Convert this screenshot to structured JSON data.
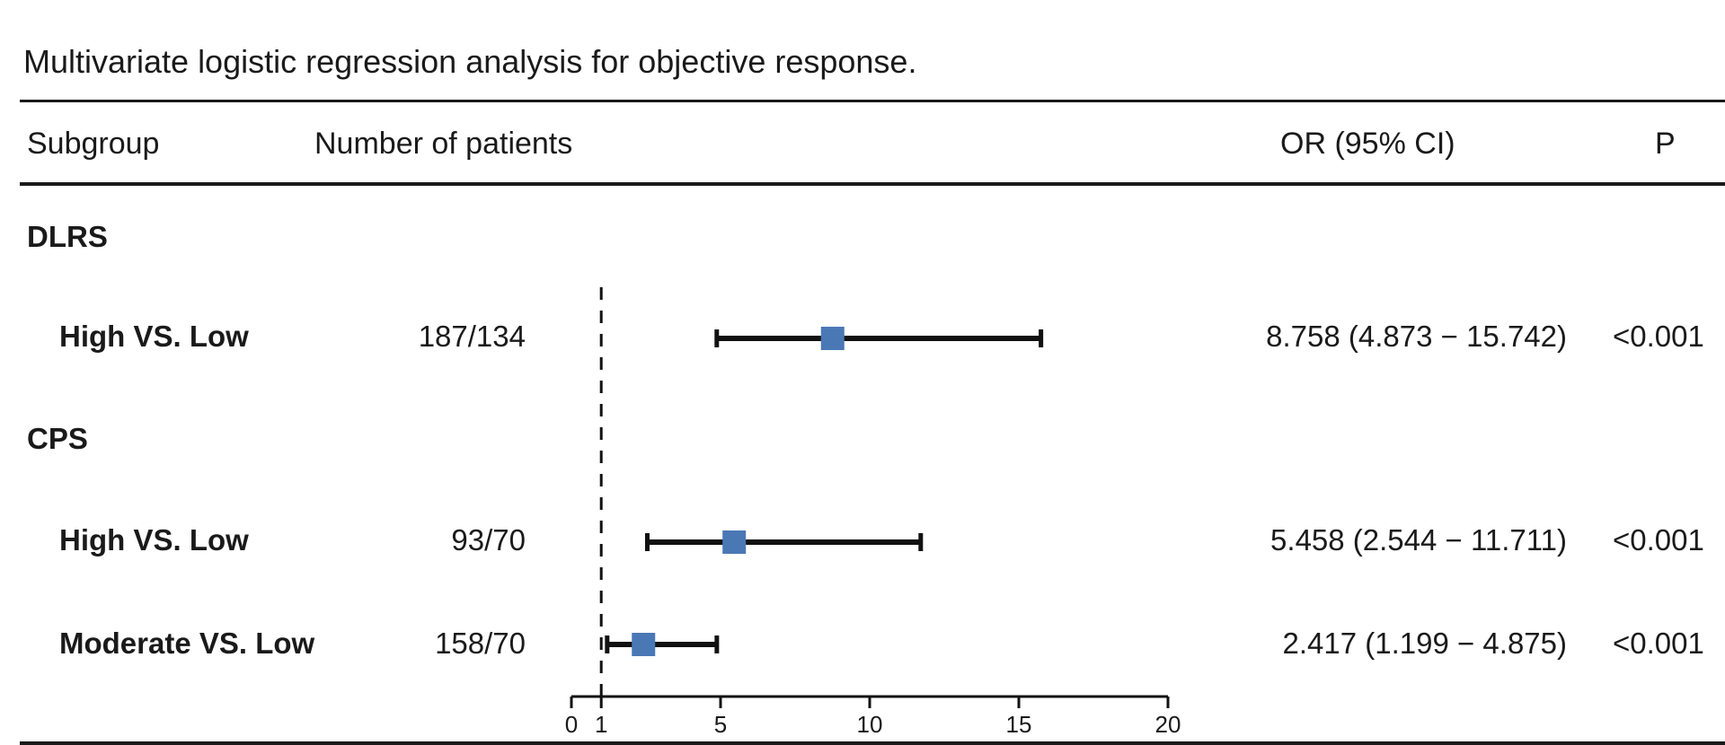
{
  "caption": "Multivariate logistic regression analysis for objective response.",
  "headers": {
    "subgroup": "Subgroup",
    "number": "Number of patients",
    "or": "OR (95% CI)",
    "p": "P"
  },
  "groups": {
    "dlrs": "DLRS",
    "cps": "CPS"
  },
  "rows": [
    {
      "label": "High VS. Low",
      "number": "187/134",
      "ci_text": "8.758 (4.873 − 15.742)",
      "p": "<0.001"
    },
    {
      "label": "High VS. Low",
      "number": "93/70",
      "ci_text": "5.458 (2.544 − 11.711)",
      "p": "<0.001"
    },
    {
      "label": "Moderate VS. Low",
      "number": "158/70",
      "ci_text": "2.417 (1.199 − 4.875)",
      "p": "<0.001"
    }
  ],
  "chart_data": {
    "type": "forest",
    "title": "Multivariate logistic regression analysis for objective response.",
    "xlim": [
      0,
      20
    ],
    "xticks": [
      0,
      1,
      5,
      10,
      15,
      20
    ],
    "xtick_labels": [
      "0",
      "1",
      "5",
      "10",
      "15",
      "20"
    ],
    "reference_line": 1,
    "series": [
      {
        "name": "DLRS High VS. Low",
        "or": 8.758,
        "lower": 4.873,
        "upper": 15.742
      },
      {
        "name": "CPS High VS. Low",
        "or": 5.458,
        "lower": 2.544,
        "upper": 11.711
      },
      {
        "name": "CPS Moderate VS. Low",
        "or": 2.417,
        "lower": 1.199,
        "upper": 4.875
      }
    ],
    "colors": {
      "marker": "#4a78b5",
      "line": "#111111"
    }
  }
}
